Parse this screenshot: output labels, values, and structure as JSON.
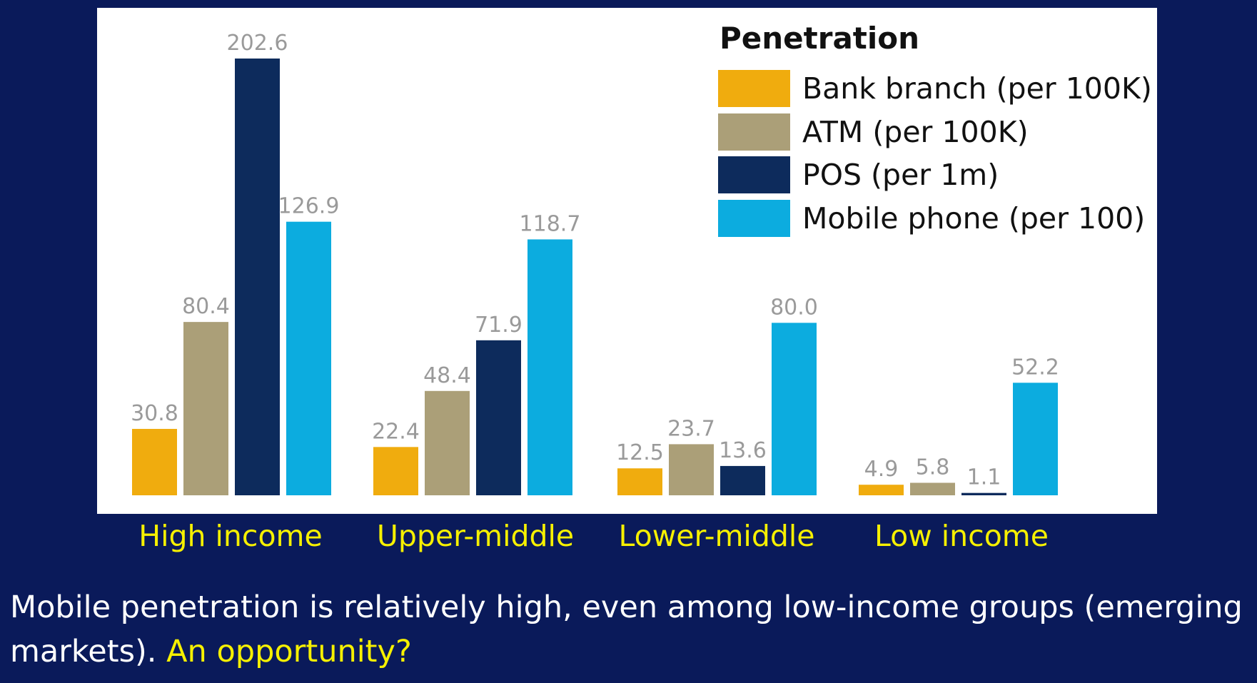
{
  "colors": {
    "background": "#0a1a5a",
    "panel": "#ffffff",
    "category_text": "#f6f000",
    "value_label": "#9a9a9a"
  },
  "chart_data": {
    "type": "bar",
    "categories": [
      "High income",
      "Upper-middle",
      "Lower-middle",
      "Low income"
    ],
    "series": [
      {
        "name": "Bank branch (per 100K)",
        "color": "#f0ac0e",
        "values": [
          30.8,
          22.4,
          12.5,
          4.9
        ]
      },
      {
        "name": "ATM (per 100K)",
        "color": "#ab9f78",
        "values": [
          80.4,
          48.4,
          23.7,
          5.8
        ]
      },
      {
        "name": "POS (per 1m)",
        "color": "#0d2b5c",
        "values": [
          202.6,
          71.9,
          13.6,
          1.1
        ]
      },
      {
        "name": "Mobile phone (per 100)",
        "color": "#0cacdf",
        "values": [
          126.9,
          118.7,
          80.0,
          52.2
        ]
      }
    ],
    "legend_title": "Penetration",
    "legend_position": "top-right",
    "ylim": [
      0,
      202.6
    ],
    "grid": false,
    "y_axis_shown": false,
    "data_labels": true
  },
  "caption": {
    "text": "Mobile penetration is relatively high, even among low-income groups (emerging markets). ",
    "highlight": "An opportunity?"
  }
}
